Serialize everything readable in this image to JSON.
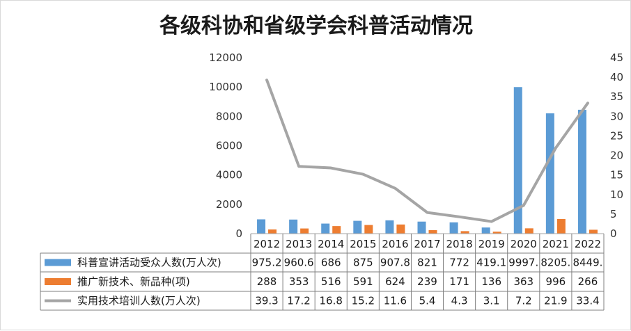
{
  "chart_data": {
    "type": "bar",
    "title": "各级科协和省级学会科普活动情况",
    "categories": [
      "2012",
      "2013",
      "2014",
      "2015",
      "2016",
      "2017",
      "2018",
      "2019",
      "2020",
      "2021",
      "2022"
    ],
    "y_left": {
      "ticks": [
        "0",
        "2000",
        "4000",
        "6000",
        "8000",
        "10000",
        "12000"
      ],
      "ylim": [
        0,
        12000
      ]
    },
    "y_right": {
      "ticks": [
        "0",
        "5",
        "10",
        "15",
        "20",
        "25",
        "30",
        "35",
        "40",
        "45"
      ],
      "ylim": [
        0,
        45
      ]
    },
    "grid": false,
    "legend": "bottom data table",
    "series": [
      {
        "name": "科普宣讲活动受众人数(万人次)",
        "kind": "bar",
        "axis": "left",
        "color": "#5b9bd5",
        "values": [
          975.2,
          960.6,
          686,
          875,
          907.8,
          821,
          772,
          419.1,
          9997,
          8205,
          8449
        ],
        "labels": [
          "975.2",
          "960.6",
          "686",
          "875",
          "907.8",
          "821",
          "772",
          "419.1",
          "9997.",
          "8205.",
          "8449."
        ]
      },
      {
        "name": "推广新技术、新品种(项)",
        "kind": "bar",
        "axis": "left",
        "color": "#ed7d31",
        "values": [
          288,
          353,
          516,
          591,
          624,
          239,
          171,
          136,
          363,
          996,
          266
        ],
        "labels": [
          "288",
          "353",
          "516",
          "591",
          "624",
          "239",
          "171",
          "136",
          "363",
          "996",
          "266"
        ]
      },
      {
        "name": "实用技术培训人数(万人次)",
        "kind": "line",
        "axis": "right",
        "color": "#a5a5a5",
        "values": [
          39.3,
          17.2,
          16.8,
          15.2,
          11.6,
          5.4,
          4.3,
          3.1,
          7.2,
          21.9,
          33.4
        ],
        "labels": [
          "39.3",
          "17.2",
          "16.8",
          "15.2",
          "11.6",
          "5.4",
          "4.3",
          "3.1",
          "7.2",
          "21.9",
          "33.4"
        ]
      }
    ]
  }
}
